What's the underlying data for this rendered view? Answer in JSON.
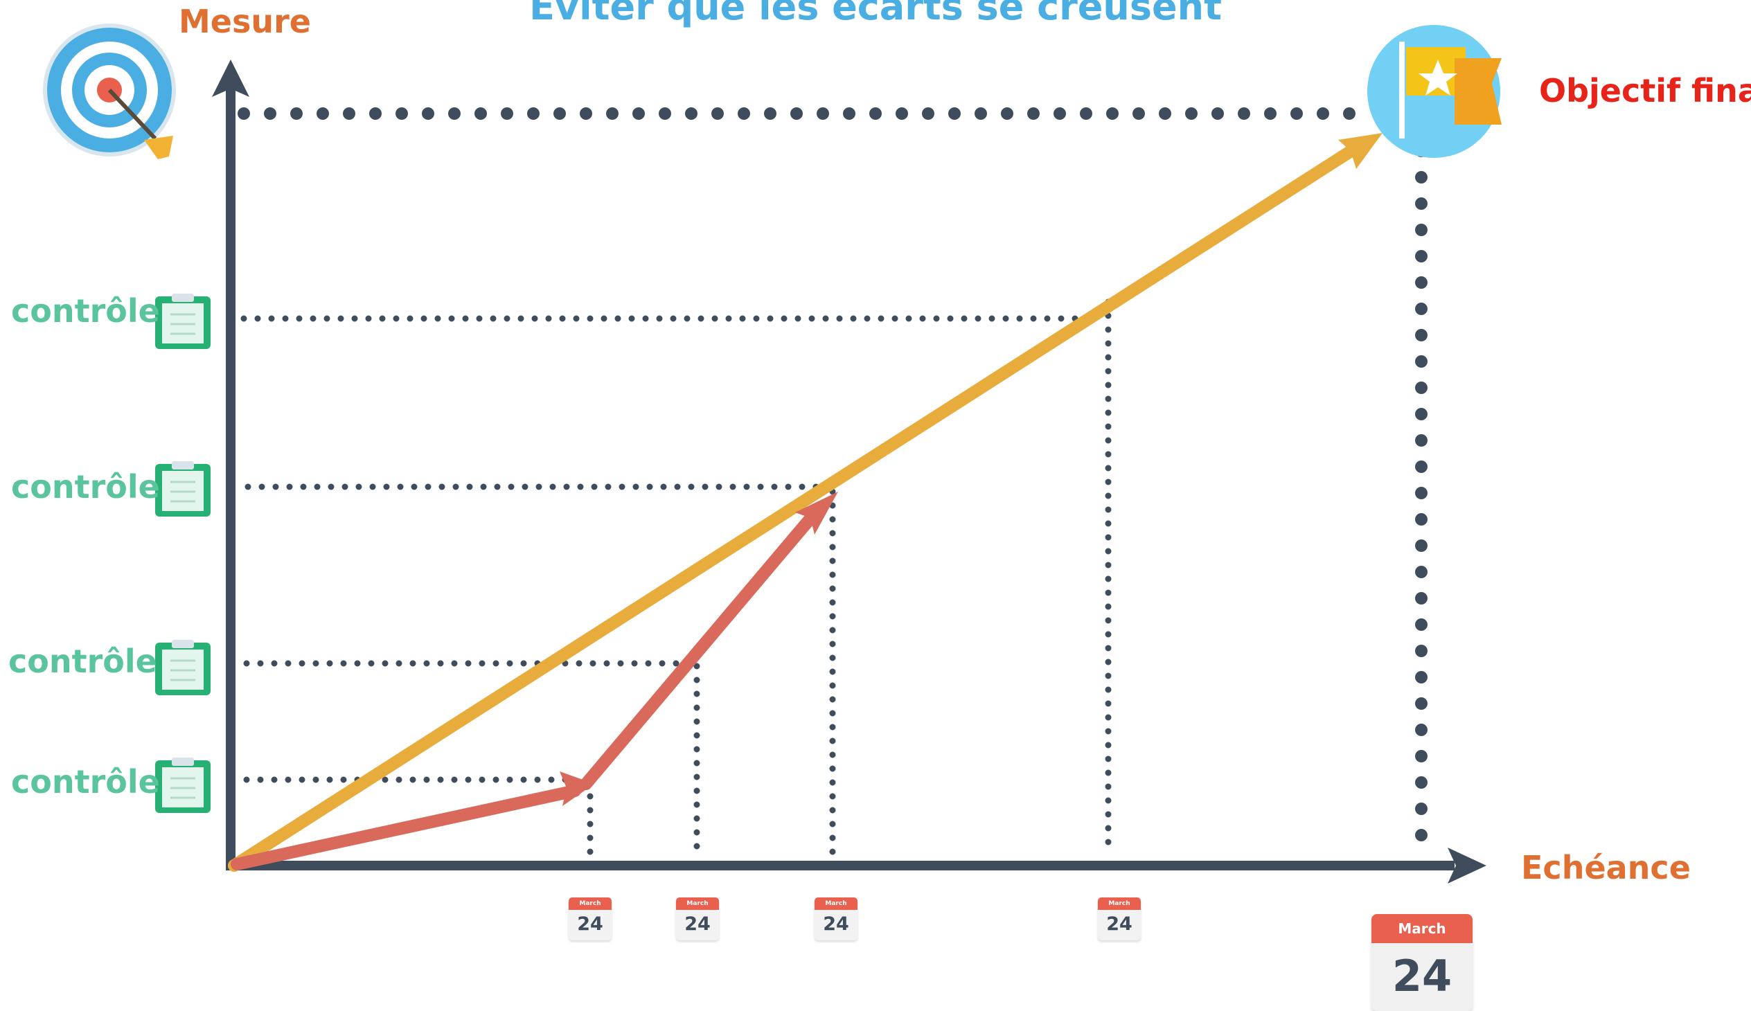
{
  "title": "Eviter que les écarts se creusent",
  "y_axis_label": "Mesure",
  "x_axis_label": "Echéance",
  "goal_label": "Objectif final",
  "checkpoint_label": "contrôle",
  "calendar": {
    "month": "March",
    "day": "24"
  },
  "icons": {
    "target": "target-icon",
    "flag": "flag-icon",
    "clipboard": "clipboard-icon",
    "calendar": "calendar-icon"
  },
  "colors": {
    "axis": "#3f4c5c",
    "planned_line": "#e8ac3c",
    "actual_line": "#d96a5b",
    "title": "#4aaee3",
    "axis_label": "#e07032",
    "goal_label": "#e8231a",
    "checkpoint_label": "#5ac49c",
    "clipboard": "#27b074",
    "calendar_header": "#e9604f"
  }
}
